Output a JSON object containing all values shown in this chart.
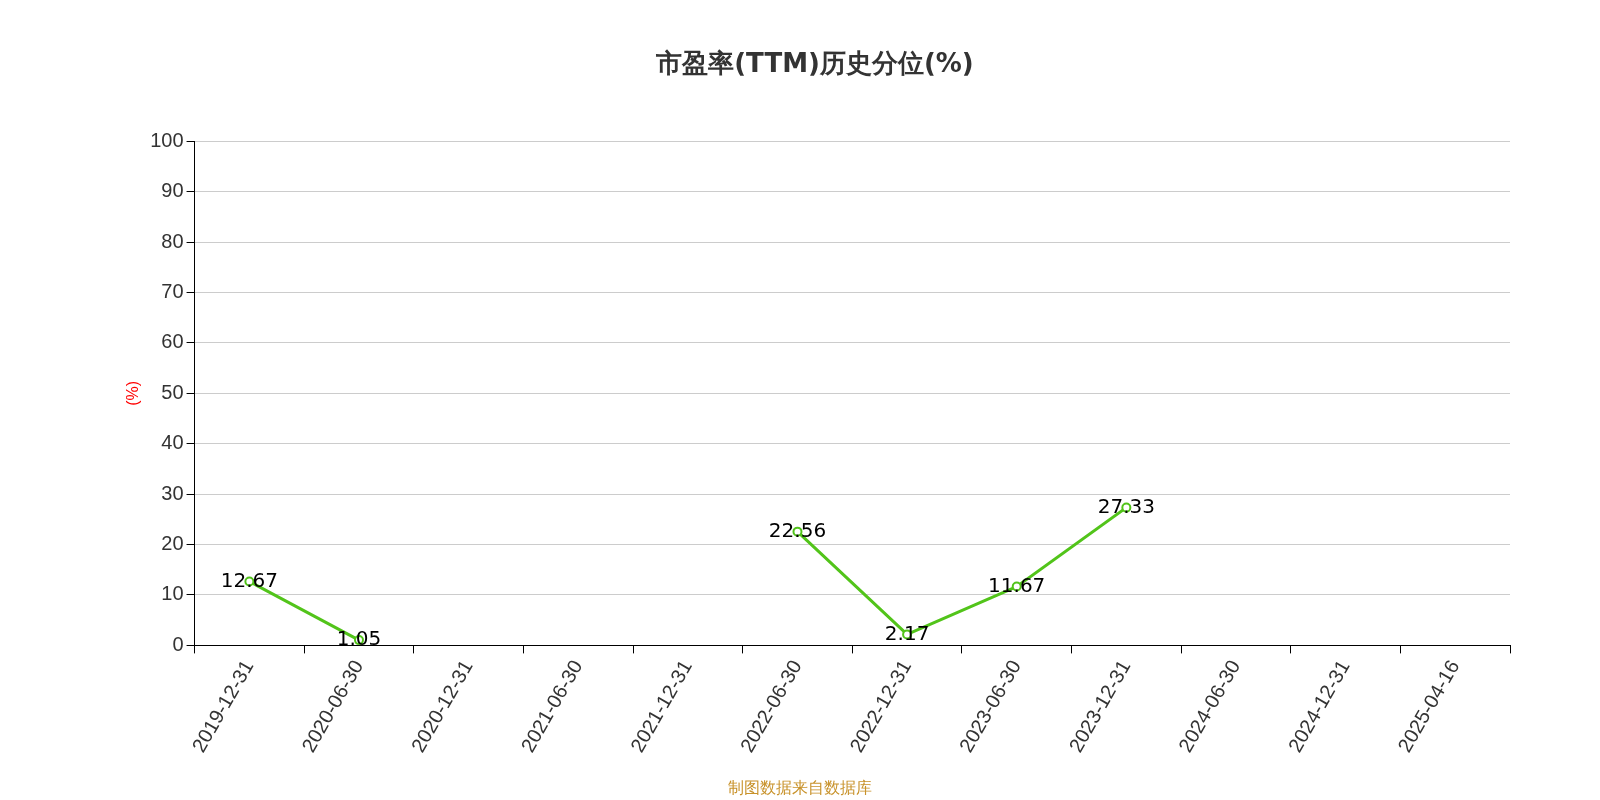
{
  "chart_data": {
    "type": "line",
    "title": "市盈率(TTM)历史分位(%)",
    "ylabel": "(%)",
    "categories": [
      "2019-12-31",
      "2020-06-30",
      "2020-12-31",
      "2021-06-30",
      "2021-12-31",
      "2022-06-30",
      "2022-12-31",
      "2023-06-30",
      "2023-12-31",
      "2024-06-30",
      "2024-12-31",
      "2025-04-16"
    ],
    "series": [
      {
        "color": "#52c41a",
        "values": [
          12.67,
          1.05,
          null,
          null,
          null,
          22.56,
          2.17,
          11.67,
          27.33,
          null,
          null,
          null
        ]
      }
    ],
    "ylim": [
      0,
      100
    ],
    "yticks": [
      0,
      10,
      20,
      30,
      40,
      50,
      60,
      70,
      80,
      90,
      100
    ],
    "grid": "y",
    "marker": "circle",
    "line_style": "solid",
    "data_labels": true,
    "annotations": [
      "制图数据来自数据库"
    ]
  }
}
